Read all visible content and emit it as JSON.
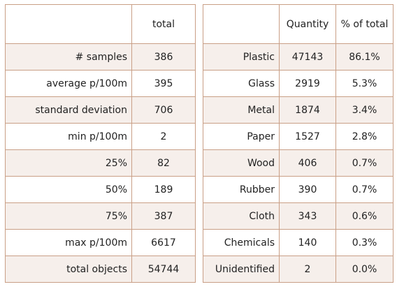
{
  "stats_table": {
    "header": [
      "",
      "total"
    ],
    "rows": [
      {
        "label": "# samples",
        "total": "386"
      },
      {
        "label": "average p/100m",
        "total": "395"
      },
      {
        "label": "standard deviation",
        "total": "706"
      },
      {
        "label": "min p/100m",
        "total": "2"
      },
      {
        "label": "25%",
        "total": "82"
      },
      {
        "label": "50%",
        "total": "189"
      },
      {
        "label": "75%",
        "total": "387"
      },
      {
        "label": "max p/100m",
        "total": "6617"
      },
      {
        "label": "total objects",
        "total": "54744"
      }
    ]
  },
  "material_table": {
    "header": [
      "",
      "Quantity",
      "% of total"
    ],
    "rows": [
      {
        "material": "Plastic",
        "quantity": "47143",
        "pct": "86.1%"
      },
      {
        "material": "Glass",
        "quantity": "2919",
        "pct": "5.3%"
      },
      {
        "material": "Metal",
        "quantity": "1874",
        "pct": "3.4%"
      },
      {
        "material": "Paper",
        "quantity": "1527",
        "pct": "2.8%"
      },
      {
        "material": "Wood",
        "quantity": "406",
        "pct": "0.7%"
      },
      {
        "material": "Rubber",
        "quantity": "390",
        "pct": "0.7%"
      },
      {
        "material": "Cloth",
        "quantity": "343",
        "pct": "0.6%"
      },
      {
        "material": "Chemicals",
        "quantity": "140",
        "pct": "0.3%"
      },
      {
        "material": "Unidentified",
        "quantity": "2",
        "pct": "0.0%"
      }
    ]
  },
  "colors": {
    "border": "#c99f86",
    "stripe": "#f6efeb"
  }
}
